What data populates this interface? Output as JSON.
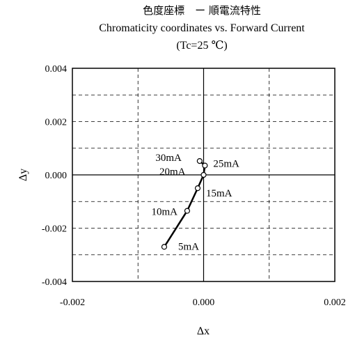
{
  "chart_data": {
    "type": "line",
    "title_cn": "色度座標　ー 順電流特性",
    "title": "Chromaticity coordinates vs. Forward Current",
    "subtitle": "(Tc=25 ℃)",
    "xlabel": "Δx",
    "ylabel": "Δy",
    "xlim": [
      -0.002,
      0.002
    ],
    "ylim": [
      -0.004,
      0.004
    ],
    "x_ticks": [
      "-0.002",
      "0.000",
      "0.002"
    ],
    "y_ticks": [
      "0.004",
      "0.002",
      "0.000",
      "-0.002",
      "-0.004"
    ],
    "grid": true,
    "series": [
      {
        "points": [
          {
            "label": "5mA",
            "x": -0.0006,
            "y": -0.0027
          },
          {
            "label": "10mA",
            "x": -0.00025,
            "y": -0.00135
          },
          {
            "label": "15mA",
            "x": -9e-05,
            "y": -0.0005
          },
          {
            "label": "20mA",
            "x": 0.0,
            "y": 0.0
          },
          {
            "label": "25mA",
            "x": 2e-05,
            "y": 0.00035
          },
          {
            "label": "30mA",
            "x": -6e-05,
            "y": 0.00052
          }
        ]
      }
    ]
  }
}
